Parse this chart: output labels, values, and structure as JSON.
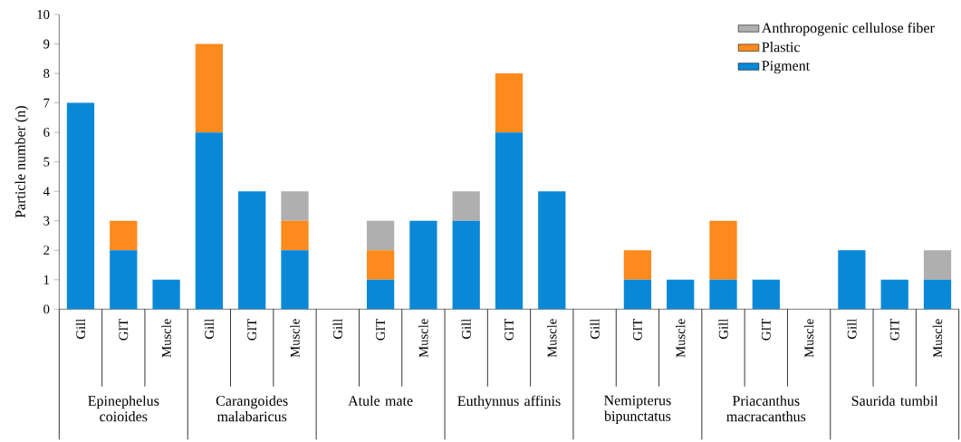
{
  "chart_data": {
    "type": "bar",
    "stacked": true,
    "ylabel": "Particle number (n)",
    "categories": [
      "Gill",
      "GIT",
      "Muscle",
      "Gill",
      "GIT",
      "Muscle",
      "Gill",
      "GIT",
      "Muscle",
      "Gill",
      "GIT",
      "Muscle",
      "Gill",
      "GIT",
      "Muscle",
      "Gill",
      "GIT",
      "Muscle",
      "Gill",
      "GIT",
      "Muscle"
    ],
    "series": [
      {
        "name": "Pigment",
        "color": "#0a88d8",
        "values": [
          7,
          2,
          1,
          6,
          4,
          2,
          0,
          1,
          3,
          3,
          6,
          4,
          0,
          1,
          1,
          1,
          1,
          0,
          2,
          1,
          1
        ]
      },
      {
        "name": "Plastic",
        "color": "#fc8a1c",
        "values": [
          0,
          1,
          0,
          3,
          0,
          1,
          0,
          1,
          0,
          0,
          2,
          0,
          0,
          1,
          0,
          2,
          0,
          0,
          0,
          0,
          0
        ]
      },
      {
        "name": "Anthropogenic cellulose fiber",
        "color": "#afafaf",
        "values": [
          0,
          0,
          0,
          0,
          0,
          1,
          0,
          1,
          0,
          1,
          0,
          0,
          0,
          0,
          0,
          0,
          0,
          0,
          0,
          0,
          1
        ]
      }
    ],
    "annotations": [
      "Epinephelus coioides",
      "Carangoides malabaricus",
      "Atule mate",
      "Euthynnus affinis",
      "Nemipterus bipunctatus",
      "Priacanthus macracanthus",
      "Saurida tumbil"
    ],
    "ylim": [
      0,
      10
    ],
    "yticks": [
      0,
      1,
      2,
      3,
      4,
      5,
      6,
      7,
      8,
      9,
      10
    ],
    "legend": "top right"
  }
}
